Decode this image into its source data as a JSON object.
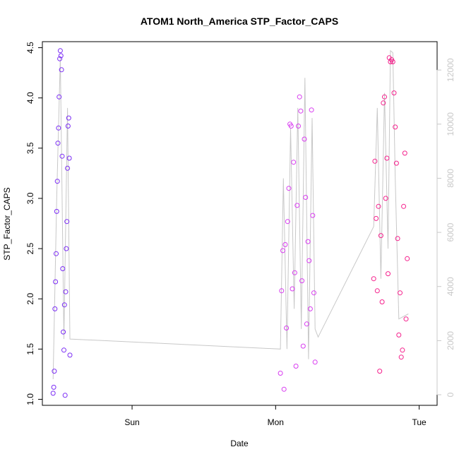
{
  "chart_data": {
    "type": "scatter",
    "title": "ATOM1 North_America STP_Factor_CAPS",
    "xlabel": "Date",
    "ylabel": "STP_Factor_CAPS",
    "ylim": [
      1.0,
      4.5
    ],
    "y_ticks": [
      "1.0",
      "1.5",
      "2.0",
      "2.5",
      "3.0",
      "3.5",
      "4.0",
      "4.5"
    ],
    "x_ticks": [
      "Sun",
      "Mon",
      "Tue"
    ],
    "xlim_hours": [
      -15,
      51
    ],
    "x_tick_hours": [
      0,
      24,
      48
    ],
    "y2_ticks": [
      "0",
      "2000",
      "4000",
      "6000",
      "8000",
      "10000",
      "12000"
    ],
    "y2lim": [
      0,
      12500
    ],
    "grid": false,
    "colors": {
      "early": "#7b2cf5",
      "mid": "#d83cf0",
      "late": "#f5208c",
      "line": "#c8c8c8"
    },
    "series": [
      {
        "values_x_hours": [
          -13.2,
          -13.1,
          -13.0,
          -12.9,
          -12.8,
          -12.7,
          -12.6,
          -12.5,
          -12.4,
          -12.3,
          -12.2,
          -12.1,
          -12.0,
          -11.9,
          -11.8,
          -11.7,
          -11.6,
          -11.5,
          -11.4,
          -11.3,
          -11.2,
          -11.1,
          -11.0,
          -10.9,
          -10.8,
          -10.7,
          -10.6,
          -10.5,
          -10.4
        ],
        "values_y": [
          1.06,
          1.12,
          1.28,
          1.9,
          2.17,
          2.45,
          2.87,
          3.17,
          3.55,
          3.7,
          4.01,
          4.39,
          4.47,
          4.42,
          4.28,
          3.42,
          2.3,
          1.67,
          1.49,
          1.94,
          1.04,
          2.07,
          2.5,
          2.77,
          3.3,
          3.72,
          3.8,
          3.4,
          1.44
        ]
      },
      {
        "values_x_hours": [
          24.8,
          25.0,
          25.2,
          25.4,
          25.6,
          25.8,
          26.0,
          26.2,
          26.4,
          26.6,
          26.8,
          27.0,
          27.2,
          27.4,
          27.6,
          27.8,
          28.0,
          28.2,
          28.4,
          28.6,
          28.8,
          29.0,
          29.2,
          29.4,
          29.6,
          29.8,
          30.0,
          30.2,
          30.4,
          30.6
        ],
        "values_y": [
          1.26,
          2.08,
          2.48,
          1.1,
          2.54,
          1.71,
          2.77,
          3.1,
          3.74,
          3.72,
          2.1,
          3.36,
          2.26,
          1.33,
          2.93,
          3.72,
          4.01,
          3.87,
          2.18,
          1.53,
          3.59,
          3.01,
          1.75,
          2.57,
          2.38,
          1.9,
          3.88,
          2.83,
          2.06,
          1.37
        ]
      },
      {
        "values_x_hours": [
          40.4,
          40.6,
          40.8,
          41.0,
          41.2,
          41.4,
          41.6,
          41.8,
          42.0,
          42.2,
          42.4,
          42.6,
          42.8,
          43.0,
          43.2,
          43.4,
          43.6,
          43.8,
          44.0,
          44.2,
          44.4,
          44.6,
          44.8,
          45.0,
          45.2,
          45.4,
          45.6,
          45.8,
          46.0
        ],
        "values_y": [
          2.2,
          3.37,
          2.8,
          2.08,
          2.92,
          1.28,
          2.63,
          1.97,
          3.95,
          4.01,
          3.0,
          3.4,
          2.25,
          4.4,
          4.36,
          4.38,
          4.36,
          4.05,
          3.71,
          3.35,
          2.6,
          1.64,
          2.06,
          1.42,
          1.49,
          2.92,
          3.45,
          1.8,
          2.4
        ]
      }
    ],
    "line_path": [
      {
        "x": -13.2,
        "y": 1.2
      },
      {
        "x": -12.6,
        "y": 3.0
      },
      {
        "x": -12.0,
        "y": 4.4
      },
      {
        "x": -11.4,
        "y": 1.6
      },
      {
        "x": -10.8,
        "y": 3.9
      },
      {
        "x": -10.4,
        "y": 1.6
      },
      {
        "x": 24.8,
        "y": 1.5
      },
      {
        "x": 25.3,
        "y": 3.2
      },
      {
        "x": 25.9,
        "y": 1.5
      },
      {
        "x": 26.5,
        "y": 3.7
      },
      {
        "x": 27.1,
        "y": 1.9
      },
      {
        "x": 27.7,
        "y": 3.9
      },
      {
        "x": 28.3,
        "y": 1.7
      },
      {
        "x": 28.9,
        "y": 4.2
      },
      {
        "x": 29.5,
        "y": 1.4
      },
      {
        "x": 30.1,
        "y": 3.8
      },
      {
        "x": 30.6,
        "y": 1.7
      },
      {
        "x": 31.1,
        "y": 1.62
      },
      {
        "x": 40.4,
        "y": 2.72
      },
      {
        "x": 41.0,
        "y": 3.9
      },
      {
        "x": 41.6,
        "y": 2.2
      },
      {
        "x": 42.2,
        "y": 4.05
      },
      {
        "x": 42.8,
        "y": 2.5
      },
      {
        "x": 43.2,
        "y": 4.47
      },
      {
        "x": 43.6,
        "y": 4.45
      },
      {
        "x": 44.0,
        "y": 3.2
      },
      {
        "x": 44.6,
        "y": 1.8
      },
      {
        "x": 46.2,
        "y": 1.85
      }
    ]
  }
}
